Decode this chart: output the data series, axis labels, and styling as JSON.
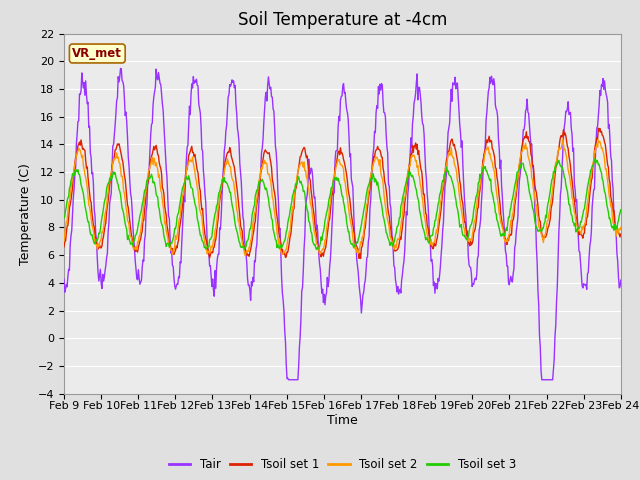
{
  "title": "Soil Temperature at -4cm",
  "xlabel": "Time",
  "ylabel": "Temperature (C)",
  "ylim": [
    -4,
    22
  ],
  "yticks": [
    -4,
    -2,
    0,
    2,
    4,
    6,
    8,
    10,
    12,
    14,
    16,
    18,
    20,
    22
  ],
  "xtick_labels": [
    "Feb 9",
    "Feb 10",
    "Feb 11",
    "Feb 12",
    "Feb 13",
    "Feb 14",
    "Feb 15",
    "Feb 16",
    "Feb 17",
    "Feb 18",
    "Feb 19",
    "Feb 20",
    "Feb 21",
    "Feb 22",
    "Feb 23",
    "Feb 24"
  ],
  "colors": {
    "Tair": "#9933ff",
    "Tsoil1": "#dd2200",
    "Tsoil2": "#ff9900",
    "Tsoil3": "#22cc00"
  },
  "legend_labels": [
    "Tair",
    "Tsoil set 1",
    "Tsoil set 2",
    "Tsoil set 3"
  ],
  "annotation_text": "VR_met",
  "annotation_bg": "#ffffcc",
  "annotation_border": "#aa6600",
  "bg_color": "#e0e0e0",
  "plot_bg": "#ebebeb",
  "grid_color": "#ffffff",
  "title_fontsize": 12,
  "axis_fontsize": 9,
  "tick_fontsize": 8
}
